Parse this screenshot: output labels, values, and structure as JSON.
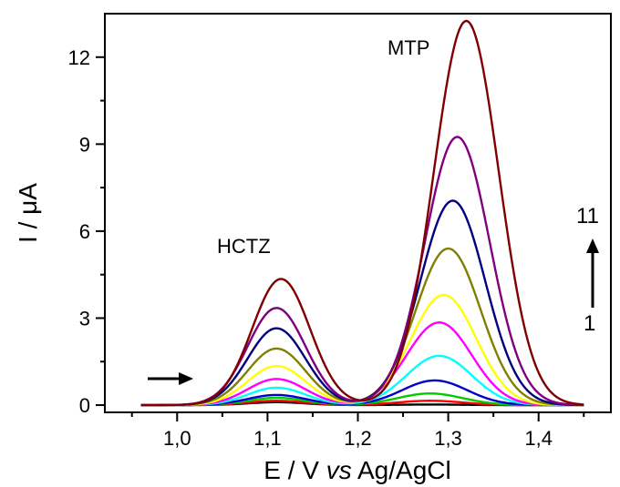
{
  "chart_data": {
    "type": "line",
    "title": "",
    "xlabel": {
      "pre": "E / V ",
      "italic": "vs",
      "post": " Ag/AgCl"
    },
    "ylabel": {
      "pre": "I / ",
      "greek": "μ",
      "post": "A"
    },
    "xlim": [
      0.92,
      1.48
    ],
    "ylim": [
      -0.25,
      13.5
    ],
    "x_ticks": [
      1.0,
      1.1,
      1.2,
      1.3,
      1.4
    ],
    "x_tick_labels": [
      "1,0",
      "1,1",
      "1,2",
      "1,3",
      "1,4"
    ],
    "y_ticks": [
      0,
      3,
      6,
      9,
      12
    ],
    "y_tick_labels": [
      "0",
      "3",
      "6",
      "9",
      "12"
    ],
    "x_start": 0.96,
    "x_end": 1.45,
    "annotations": {
      "peak1": "HCTZ",
      "peak2": "MTP",
      "series_top": "11",
      "series_bottom": "1"
    },
    "series": [
      {
        "color": "#000000",
        "peak1": {
          "x": 1.11,
          "y": 0.1
        },
        "peak2": {
          "x": 1.28,
          "y": 0.02
        }
      },
      {
        "color": "#ff0000",
        "peak1": {
          "x": 1.11,
          "y": 0.15
        },
        "peak2": {
          "x": 1.28,
          "y": 0.15
        }
      },
      {
        "color": "#00cc00",
        "peak1": {
          "x": 1.11,
          "y": 0.25
        },
        "peak2": {
          "x": 1.28,
          "y": 0.4
        }
      },
      {
        "color": "#0000cc",
        "peak1": {
          "x": 1.11,
          "y": 0.35
        },
        "peak2": {
          "x": 1.285,
          "y": 0.85
        }
      },
      {
        "color": "#00ffff",
        "peak1": {
          "x": 1.11,
          "y": 0.6
        },
        "peak2": {
          "x": 1.29,
          "y": 1.7
        }
      },
      {
        "color": "#ff00ff",
        "peak1": {
          "x": 1.11,
          "y": 0.9
        },
        "peak2": {
          "x": 1.29,
          "y": 2.85
        }
      },
      {
        "color": "#ffff00",
        "peak1": {
          "x": 1.11,
          "y": 1.35
        },
        "peak2": {
          "x": 1.295,
          "y": 3.8
        }
      },
      {
        "color": "#808000",
        "peak1": {
          "x": 1.11,
          "y": 1.95
        },
        "peak2": {
          "x": 1.3,
          "y": 5.4
        }
      },
      {
        "color": "#000080",
        "peak1": {
          "x": 1.11,
          "y": 2.65
        },
        "peak2": {
          "x": 1.305,
          "y": 7.05
        }
      },
      {
        "color": "#800080",
        "peak1": {
          "x": 1.11,
          "y": 3.35
        },
        "peak2": {
          "x": 1.31,
          "y": 9.25
        }
      },
      {
        "color": "#800000",
        "peak1": {
          "x": 1.115,
          "y": 4.35
        },
        "peak2": {
          "x": 1.32,
          "y": 13.25
        }
      }
    ]
  }
}
